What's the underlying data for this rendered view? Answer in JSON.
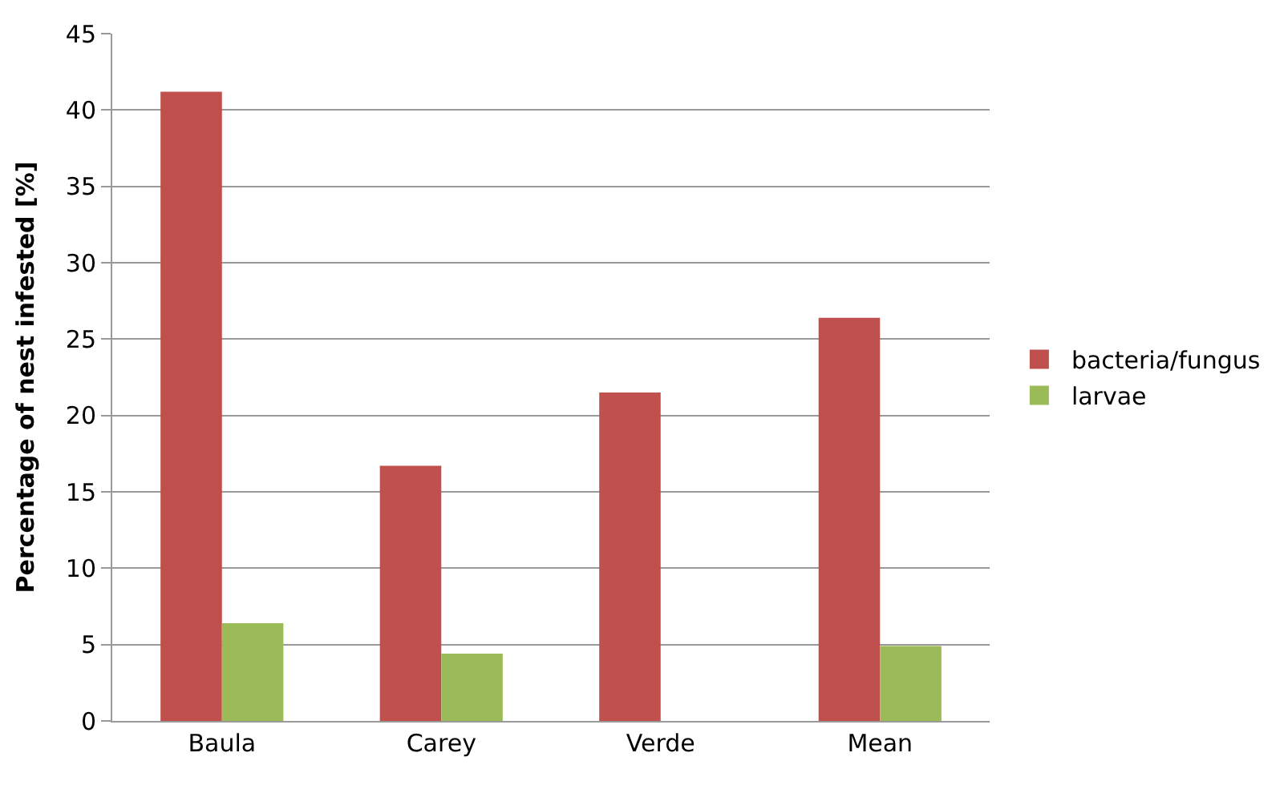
{
  "chart_data": {
    "type": "bar",
    "ylabel": "Percentage of nest infested [%]",
    "categories": [
      "Baula",
      "Carey",
      "Verde",
      "Mean"
    ],
    "series": [
      {
        "name": "bacteria/fungus",
        "color": "#c0504d",
        "values": [
          41.2,
          16.7,
          21.5,
          26.4
        ]
      },
      {
        "name": "larvae",
        "color": "#9bbb59",
        "values": [
          6.4,
          4.4,
          0,
          4.9
        ]
      }
    ],
    "ylim": [
      0,
      45
    ],
    "yticks": [
      0,
      5,
      10,
      15,
      20,
      25,
      30,
      35,
      40,
      45
    ],
    "grid": "y",
    "legend": "right"
  }
}
